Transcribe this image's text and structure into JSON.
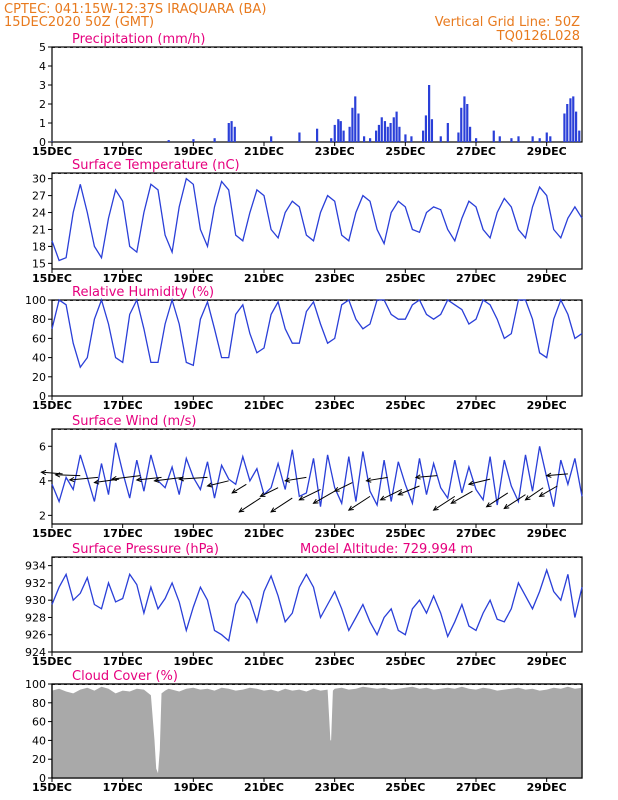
{
  "header": {
    "line1": "CPTEC:  041:15W-12:37S   IRAQUARA (BA)",
    "line2": "15DEC2020 50Z (GMT)",
    "grid_note": "Vertical Grid Line: 50Z",
    "code": "TQ0126L028"
  },
  "colors": {
    "header": "#e87a1e",
    "title": "#e6007e",
    "line": "#2a3fd8",
    "bar": "#2a3fd8",
    "cloud": "#a9a9a9"
  },
  "x_axis": {
    "start_day": 15,
    "end_day": 30,
    "tick_days": [
      15,
      17,
      19,
      21,
      23,
      25,
      27,
      29
    ],
    "tick_labels": [
      "15DEC",
      "17DEC",
      "19DEC",
      "21DEC",
      "23DEC",
      "25DEC",
      "27DEC",
      "29DEC"
    ]
  },
  "chart_data": [
    {
      "id": "precip",
      "type": "bar",
      "title": "Precipitation (mm/h)",
      "ylim": [
        0,
        5
      ],
      "yticks": [
        0,
        1,
        2,
        3,
        4,
        5
      ],
      "x": [
        15.0,
        18.3,
        19.0,
        19.6,
        20.0,
        20.08,
        20.17,
        21.2,
        22.0,
        22.5,
        22.9,
        23.0,
        23.1,
        23.17,
        23.25,
        23.42,
        23.5,
        23.58,
        23.67,
        23.83,
        24.0,
        24.17,
        24.25,
        24.33,
        24.42,
        24.5,
        24.58,
        24.67,
        24.75,
        24.83,
        25.0,
        25.17,
        25.5,
        25.58,
        25.67,
        25.75,
        26.0,
        26.2,
        26.5,
        26.58,
        26.67,
        26.75,
        26.83,
        27.0,
        27.5,
        27.67,
        28.0,
        28.2,
        28.6,
        28.8,
        29.0,
        29.1,
        29.5,
        29.58,
        29.67,
        29.75,
        29.83,
        29.92
      ],
      "values": [
        0.02,
        0.1,
        0.15,
        0.2,
        1.0,
        1.1,
        0.8,
        0.3,
        0.5,
        0.7,
        0.2,
        0.9,
        1.2,
        1.1,
        0.6,
        0.8,
        1.8,
        2.4,
        1.5,
        0.3,
        0.2,
        0.6,
        0.9,
        1.3,
        1.1,
        0.8,
        1.0,
        1.3,
        1.6,
        0.8,
        0.4,
        0.3,
        0.6,
        1.4,
        3.0,
        1.2,
        0.3,
        1.0,
        0.5,
        1.8,
        2.4,
        2.0,
        0.8,
        0.2,
        0.6,
        0.3,
        0.2,
        0.3,
        0.3,
        0.2,
        0.5,
        0.3,
        1.5,
        2.0,
        2.3,
        2.4,
        1.6,
        0.6
      ]
    },
    {
      "id": "temp",
      "type": "line",
      "title": "Surface Temperature (nC)",
      "ylim": [
        14,
        31
      ],
      "yticks": [
        15,
        18,
        21,
        24,
        27,
        30
      ],
      "x": [
        15.0,
        15.2,
        15.4,
        15.6,
        15.8,
        16.0,
        16.2,
        16.4,
        16.6,
        16.8,
        17.0,
        17.2,
        17.4,
        17.6,
        17.8,
        18.0,
        18.2,
        18.4,
        18.6,
        18.8,
        19.0,
        19.2,
        19.4,
        19.6,
        19.8,
        20.0,
        20.2,
        20.4,
        20.6,
        20.8,
        21.0,
        21.2,
        21.4,
        21.6,
        21.8,
        22.0,
        22.2,
        22.4,
        22.6,
        22.8,
        23.0,
        23.2,
        23.4,
        23.6,
        23.8,
        24.0,
        24.2,
        24.4,
        24.6,
        24.8,
        25.0,
        25.2,
        25.4,
        25.6,
        25.8,
        26.0,
        26.2,
        26.4,
        26.6,
        26.8,
        27.0,
        27.2,
        27.4,
        27.6,
        27.8,
        28.0,
        28.2,
        28.4,
        28.6,
        28.8,
        29.0,
        29.2,
        29.4,
        29.6,
        29.8,
        30.0
      ],
      "values": [
        19,
        15.5,
        16,
        24,
        29,
        24,
        18,
        16,
        23,
        28,
        26,
        18,
        17,
        24,
        29,
        28,
        20,
        17,
        25,
        30,
        29,
        21,
        18,
        25,
        29.5,
        28,
        20,
        19,
        24,
        28,
        27,
        21,
        19.5,
        24,
        26,
        25,
        20,
        19,
        24,
        27,
        26,
        20,
        19,
        24,
        27,
        26,
        21,
        18.5,
        24,
        26,
        25,
        21,
        20.5,
        24,
        25,
        24.5,
        21,
        19,
        23,
        26,
        25,
        21,
        19.5,
        24,
        26.5,
        25,
        21,
        19.5,
        25,
        28.5,
        27,
        21,
        19.5,
        23,
        25,
        23
      ]
    },
    {
      "id": "rh",
      "type": "line",
      "title": "Relative Humidity (%)",
      "ylim": [
        0,
        100
      ],
      "yticks": [
        0,
        20,
        40,
        60,
        80,
        100
      ],
      "x": [
        15.0,
        15.2,
        15.4,
        15.6,
        15.8,
        16.0,
        16.2,
        16.4,
        16.6,
        16.8,
        17.0,
        17.2,
        17.4,
        17.6,
        17.8,
        18.0,
        18.2,
        18.4,
        18.6,
        18.8,
        19.0,
        19.2,
        19.4,
        19.6,
        19.8,
        20.0,
        20.2,
        20.4,
        20.6,
        20.8,
        21.0,
        21.2,
        21.4,
        21.6,
        21.8,
        22.0,
        22.2,
        22.4,
        22.6,
        22.8,
        23.0,
        23.2,
        23.4,
        23.6,
        23.8,
        24.0,
        24.2,
        24.4,
        24.6,
        24.8,
        25.0,
        25.2,
        25.4,
        25.6,
        25.8,
        26.0,
        26.2,
        26.4,
        26.6,
        26.8,
        27.0,
        27.2,
        27.4,
        27.6,
        27.8,
        28.0,
        28.2,
        28.4,
        28.6,
        28.8,
        29.0,
        29.2,
        29.4,
        29.6,
        29.8,
        30.0
      ],
      "values": [
        70,
        100,
        95,
        55,
        30,
        40,
        80,
        100,
        75,
        40,
        35,
        85,
        100,
        70,
        35,
        35,
        75,
        100,
        75,
        35,
        32,
        80,
        98,
        70,
        40,
        40,
        85,
        95,
        65,
        45,
        50,
        85,
        98,
        70,
        55,
        55,
        88,
        98,
        75,
        55,
        60,
        95,
        100,
        80,
        70,
        75,
        100,
        100,
        85,
        80,
        80,
        95,
        100,
        85,
        80,
        85,
        100,
        95,
        90,
        75,
        80,
        100,
        95,
        80,
        60,
        65,
        100,
        100,
        80,
        45,
        40,
        80,
        100,
        85,
        60,
        65
      ]
    },
    {
      "id": "wind",
      "type": "line",
      "title": "Surface Wind (m/s)",
      "ylim": [
        1.5,
        7
      ],
      "yticks": [
        2,
        4,
        6
      ],
      "x": [
        15.0,
        15.2,
        15.4,
        15.6,
        15.8,
        16.0,
        16.2,
        16.4,
        16.6,
        16.8,
        17.0,
        17.2,
        17.4,
        17.6,
        17.8,
        18.0,
        18.2,
        18.4,
        18.6,
        18.8,
        19.0,
        19.2,
        19.4,
        19.6,
        19.8,
        20.0,
        20.2,
        20.4,
        20.6,
        20.8,
        21.0,
        21.2,
        21.4,
        21.6,
        21.8,
        22.0,
        22.2,
        22.4,
        22.6,
        22.8,
        23.0,
        23.2,
        23.4,
        23.6,
        23.8,
        24.0,
        24.2,
        24.4,
        24.6,
        24.8,
        25.0,
        25.2,
        25.4,
        25.6,
        25.8,
        26.0,
        26.2,
        26.4,
        26.6,
        26.8,
        27.0,
        27.2,
        27.4,
        27.6,
        27.8,
        28.0,
        28.2,
        28.4,
        28.6,
        28.8,
        29.0,
        29.2,
        29.4,
        29.6,
        29.8,
        30.0
      ],
      "values": [
        3.8,
        2.8,
        4.2,
        3.5,
        5.5,
        4.2,
        2.8,
        5.0,
        3.2,
        6.2,
        4.5,
        3.0,
        5.2,
        3.4,
        5.5,
        4.0,
        3.6,
        4.8,
        3.2,
        5.3,
        4.2,
        3.5,
        5.1,
        3.0,
        4.9,
        4.1,
        3.8,
        5.4,
        4.0,
        4.7,
        3.2,
        3.6,
        5.0,
        3.5,
        5.8,
        3.1,
        3.3,
        5.3,
        2.5,
        5.5,
        3.6,
        2.7,
        5.4,
        2.8,
        5.7,
        3.4,
        2.6,
        5.2,
        2.8,
        5.1,
        3.8,
        2.7,
        5.3,
        3.2,
        5.0,
        3.6,
        3.0,
        5.2,
        3.3,
        4.8,
        3.5,
        2.9,
        5.4,
        2.6,
        5.2,
        3.7,
        2.8,
        5.5,
        3.4,
        6.0,
        4.2,
        2.5,
        5.2,
        3.8,
        5.3,
        3.1
      ],
      "barbs": [
        {
          "x": 15.3,
          "y": 4.4,
          "dx": 0.6,
          "dy": -0.1
        },
        {
          "x": 15.8,
          "y": 4.3,
          "dx": 0.7,
          "dy": -0.05
        },
        {
          "x": 16.3,
          "y": 4.2,
          "dx": 0.8,
          "dy": 0.15
        },
        {
          "x": 16.9,
          "y": 4.1,
          "dx": 0.7,
          "dy": 0.2
        },
        {
          "x": 17.5,
          "y": 4.3,
          "dx": 0.8,
          "dy": 0.2
        },
        {
          "x": 18.1,
          "y": 4.2,
          "dx": 0.7,
          "dy": 0.15
        },
        {
          "x": 18.7,
          "y": 4.2,
          "dx": 0.8,
          "dy": 0.2
        },
        {
          "x": 19.4,
          "y": 4.2,
          "dx": 0.8,
          "dy": 0.1
        },
        {
          "x": 20.0,
          "y": 4.0,
          "dx": 0.6,
          "dy": 0.3
        },
        {
          "x": 20.5,
          "y": 3.8,
          "dx": 0.4,
          "dy": 0.5
        },
        {
          "x": 20.9,
          "y": 3.0,
          "dx": 0.6,
          "dy": 0.8
        },
        {
          "x": 21.4,
          "y": 3.6,
          "dx": 0.5,
          "dy": 0.5
        },
        {
          "x": 21.8,
          "y": 3.0,
          "dx": 0.6,
          "dy": 0.8
        },
        {
          "x": 22.2,
          "y": 4.2,
          "dx": 0.6,
          "dy": 0.2
        },
        {
          "x": 22.6,
          "y": 3.5,
          "dx": 0.6,
          "dy": 0.6
        },
        {
          "x": 23.0,
          "y": 3.4,
          "dx": 0.6,
          "dy": 0.7
        },
        {
          "x": 23.5,
          "y": 3.9,
          "dx": 0.5,
          "dy": 0.5
        },
        {
          "x": 24.0,
          "y": 3.1,
          "dx": 0.6,
          "dy": 0.8
        },
        {
          "x": 24.5,
          "y": 4.2,
          "dx": 0.6,
          "dy": 0.2
        },
        {
          "x": 24.9,
          "y": 3.5,
          "dx": 0.6,
          "dy": 0.6
        },
        {
          "x": 25.4,
          "y": 3.7,
          "dx": 0.6,
          "dy": 0.5
        },
        {
          "x": 25.9,
          "y": 4.3,
          "dx": 0.6,
          "dy": 0.1
        },
        {
          "x": 26.4,
          "y": 3.1,
          "dx": 0.6,
          "dy": 0.8
        },
        {
          "x": 26.9,
          "y": 3.4,
          "dx": 0.6,
          "dy": 0.7
        },
        {
          "x": 27.4,
          "y": 4.1,
          "dx": 0.6,
          "dy": 0.3
        },
        {
          "x": 27.9,
          "y": 3.3,
          "dx": 0.6,
          "dy": 0.8
        },
        {
          "x": 28.4,
          "y": 3.2,
          "dx": 0.6,
          "dy": 0.8
        },
        {
          "x": 28.9,
          "y": 3.6,
          "dx": 0.5,
          "dy": 0.7
        },
        {
          "x": 29.3,
          "y": 3.7,
          "dx": 0.5,
          "dy": 0.6
        },
        {
          "x": 29.6,
          "y": 4.4,
          "dx": 0.6,
          "dy": 0.1
        }
      ]
    },
    {
      "id": "pressure",
      "type": "line",
      "title": "Surface Pressure (hPa)",
      "ylim": [
        924,
        935
      ],
      "yticks": [
        924,
        926,
        928,
        930,
        932,
        934
      ],
      "annotation": "Model Altitude: 729.994 m",
      "x": [
        15.0,
        15.2,
        15.4,
        15.6,
        15.8,
        16.0,
        16.2,
        16.4,
        16.6,
        16.8,
        17.0,
        17.2,
        17.4,
        17.6,
        17.8,
        18.0,
        18.2,
        18.4,
        18.6,
        18.8,
        19.0,
        19.2,
        19.4,
        19.6,
        19.8,
        20.0,
        20.2,
        20.4,
        20.6,
        20.8,
        21.0,
        21.2,
        21.4,
        21.6,
        21.8,
        22.0,
        22.2,
        22.4,
        22.6,
        22.8,
        23.0,
        23.2,
        23.4,
        23.6,
        23.8,
        24.0,
        24.2,
        24.4,
        24.6,
        24.8,
        25.0,
        25.2,
        25.4,
        25.6,
        25.8,
        26.0,
        26.2,
        26.4,
        26.6,
        26.8,
        27.0,
        27.2,
        27.4,
        27.6,
        27.8,
        28.0,
        28.2,
        28.4,
        28.6,
        28.8,
        29.0,
        29.2,
        29.4,
        29.6,
        29.8,
        30.0
      ],
      "values": [
        929.5,
        931.5,
        933.0,
        930.0,
        930.8,
        932.6,
        929.5,
        929.0,
        932.0,
        929.8,
        930.2,
        933.0,
        931.8,
        928.5,
        931.5,
        929.0,
        930.2,
        932.0,
        929.8,
        926.5,
        929.2,
        931.5,
        930.0,
        926.5,
        926.0,
        925.3,
        929.5,
        931.0,
        930.0,
        927.5,
        931.0,
        932.8,
        930.5,
        927.5,
        928.5,
        931.5,
        933.0,
        931.5,
        928.0,
        929.5,
        931.0,
        929.0,
        926.5,
        928.0,
        929.5,
        927.5,
        926.0,
        928.0,
        929.0,
        926.5,
        926.0,
        929.0,
        930.0,
        928.5,
        930.5,
        928.5,
        925.8,
        927.5,
        929.5,
        927.0,
        926.5,
        928.5,
        930.0,
        927.8,
        927.5,
        929.0,
        932.0,
        930.5,
        929.0,
        931.0,
        933.5,
        931.0,
        930.0,
        933.0,
        928.0,
        931.5
      ]
    },
    {
      "id": "cloud",
      "type": "area",
      "title": "Cloud Cover (%)",
      "ylim": [
        0,
        100
      ],
      "yticks": [
        0,
        20,
        40,
        60,
        80,
        100
      ],
      "x": [
        15.0,
        15.2,
        15.4,
        15.6,
        15.8,
        16.0,
        16.2,
        16.4,
        16.6,
        16.8,
        17.0,
        17.2,
        17.4,
        17.6,
        17.8,
        17.9,
        17.95,
        18.0,
        18.05,
        18.1,
        18.2,
        18.3,
        18.4,
        18.6,
        18.8,
        19.0,
        19.2,
        19.4,
        19.6,
        19.8,
        20.0,
        20.2,
        20.4,
        20.6,
        20.8,
        21.0,
        21.2,
        21.4,
        21.6,
        21.8,
        22.0,
        22.2,
        22.4,
        22.6,
        22.8,
        22.88,
        22.9,
        22.95,
        23.0,
        23.2,
        23.4,
        23.6,
        23.8,
        24.0,
        24.2,
        24.4,
        24.6,
        24.8,
        25.0,
        25.2,
        25.4,
        25.6,
        25.8,
        26.0,
        26.2,
        26.4,
        26.6,
        26.8,
        27.0,
        27.2,
        27.4,
        27.6,
        27.8,
        28.0,
        28.2,
        28.4,
        28.6,
        28.8,
        29.0,
        29.2,
        29.4,
        29.6,
        29.8,
        30.0
      ],
      "values": [
        93,
        95,
        92,
        90,
        94,
        96,
        93,
        97,
        95,
        90,
        93,
        92,
        95,
        94,
        88,
        40,
        10,
        5,
        30,
        90,
        93,
        95,
        94,
        92,
        95,
        96,
        94,
        95,
        93,
        96,
        95,
        93,
        94,
        96,
        95,
        93,
        94,
        92,
        95,
        93,
        94,
        92,
        95,
        93,
        94,
        40,
        40,
        93,
        95,
        96,
        94,
        95,
        97,
        96,
        95,
        96,
        94,
        95,
        96,
        97,
        95,
        96,
        94,
        95,
        96,
        95,
        97,
        95,
        94,
        96,
        95,
        93,
        94,
        95,
        96,
        94,
        95,
        93,
        94,
        96,
        95,
        97,
        95,
        96
      ]
    }
  ]
}
